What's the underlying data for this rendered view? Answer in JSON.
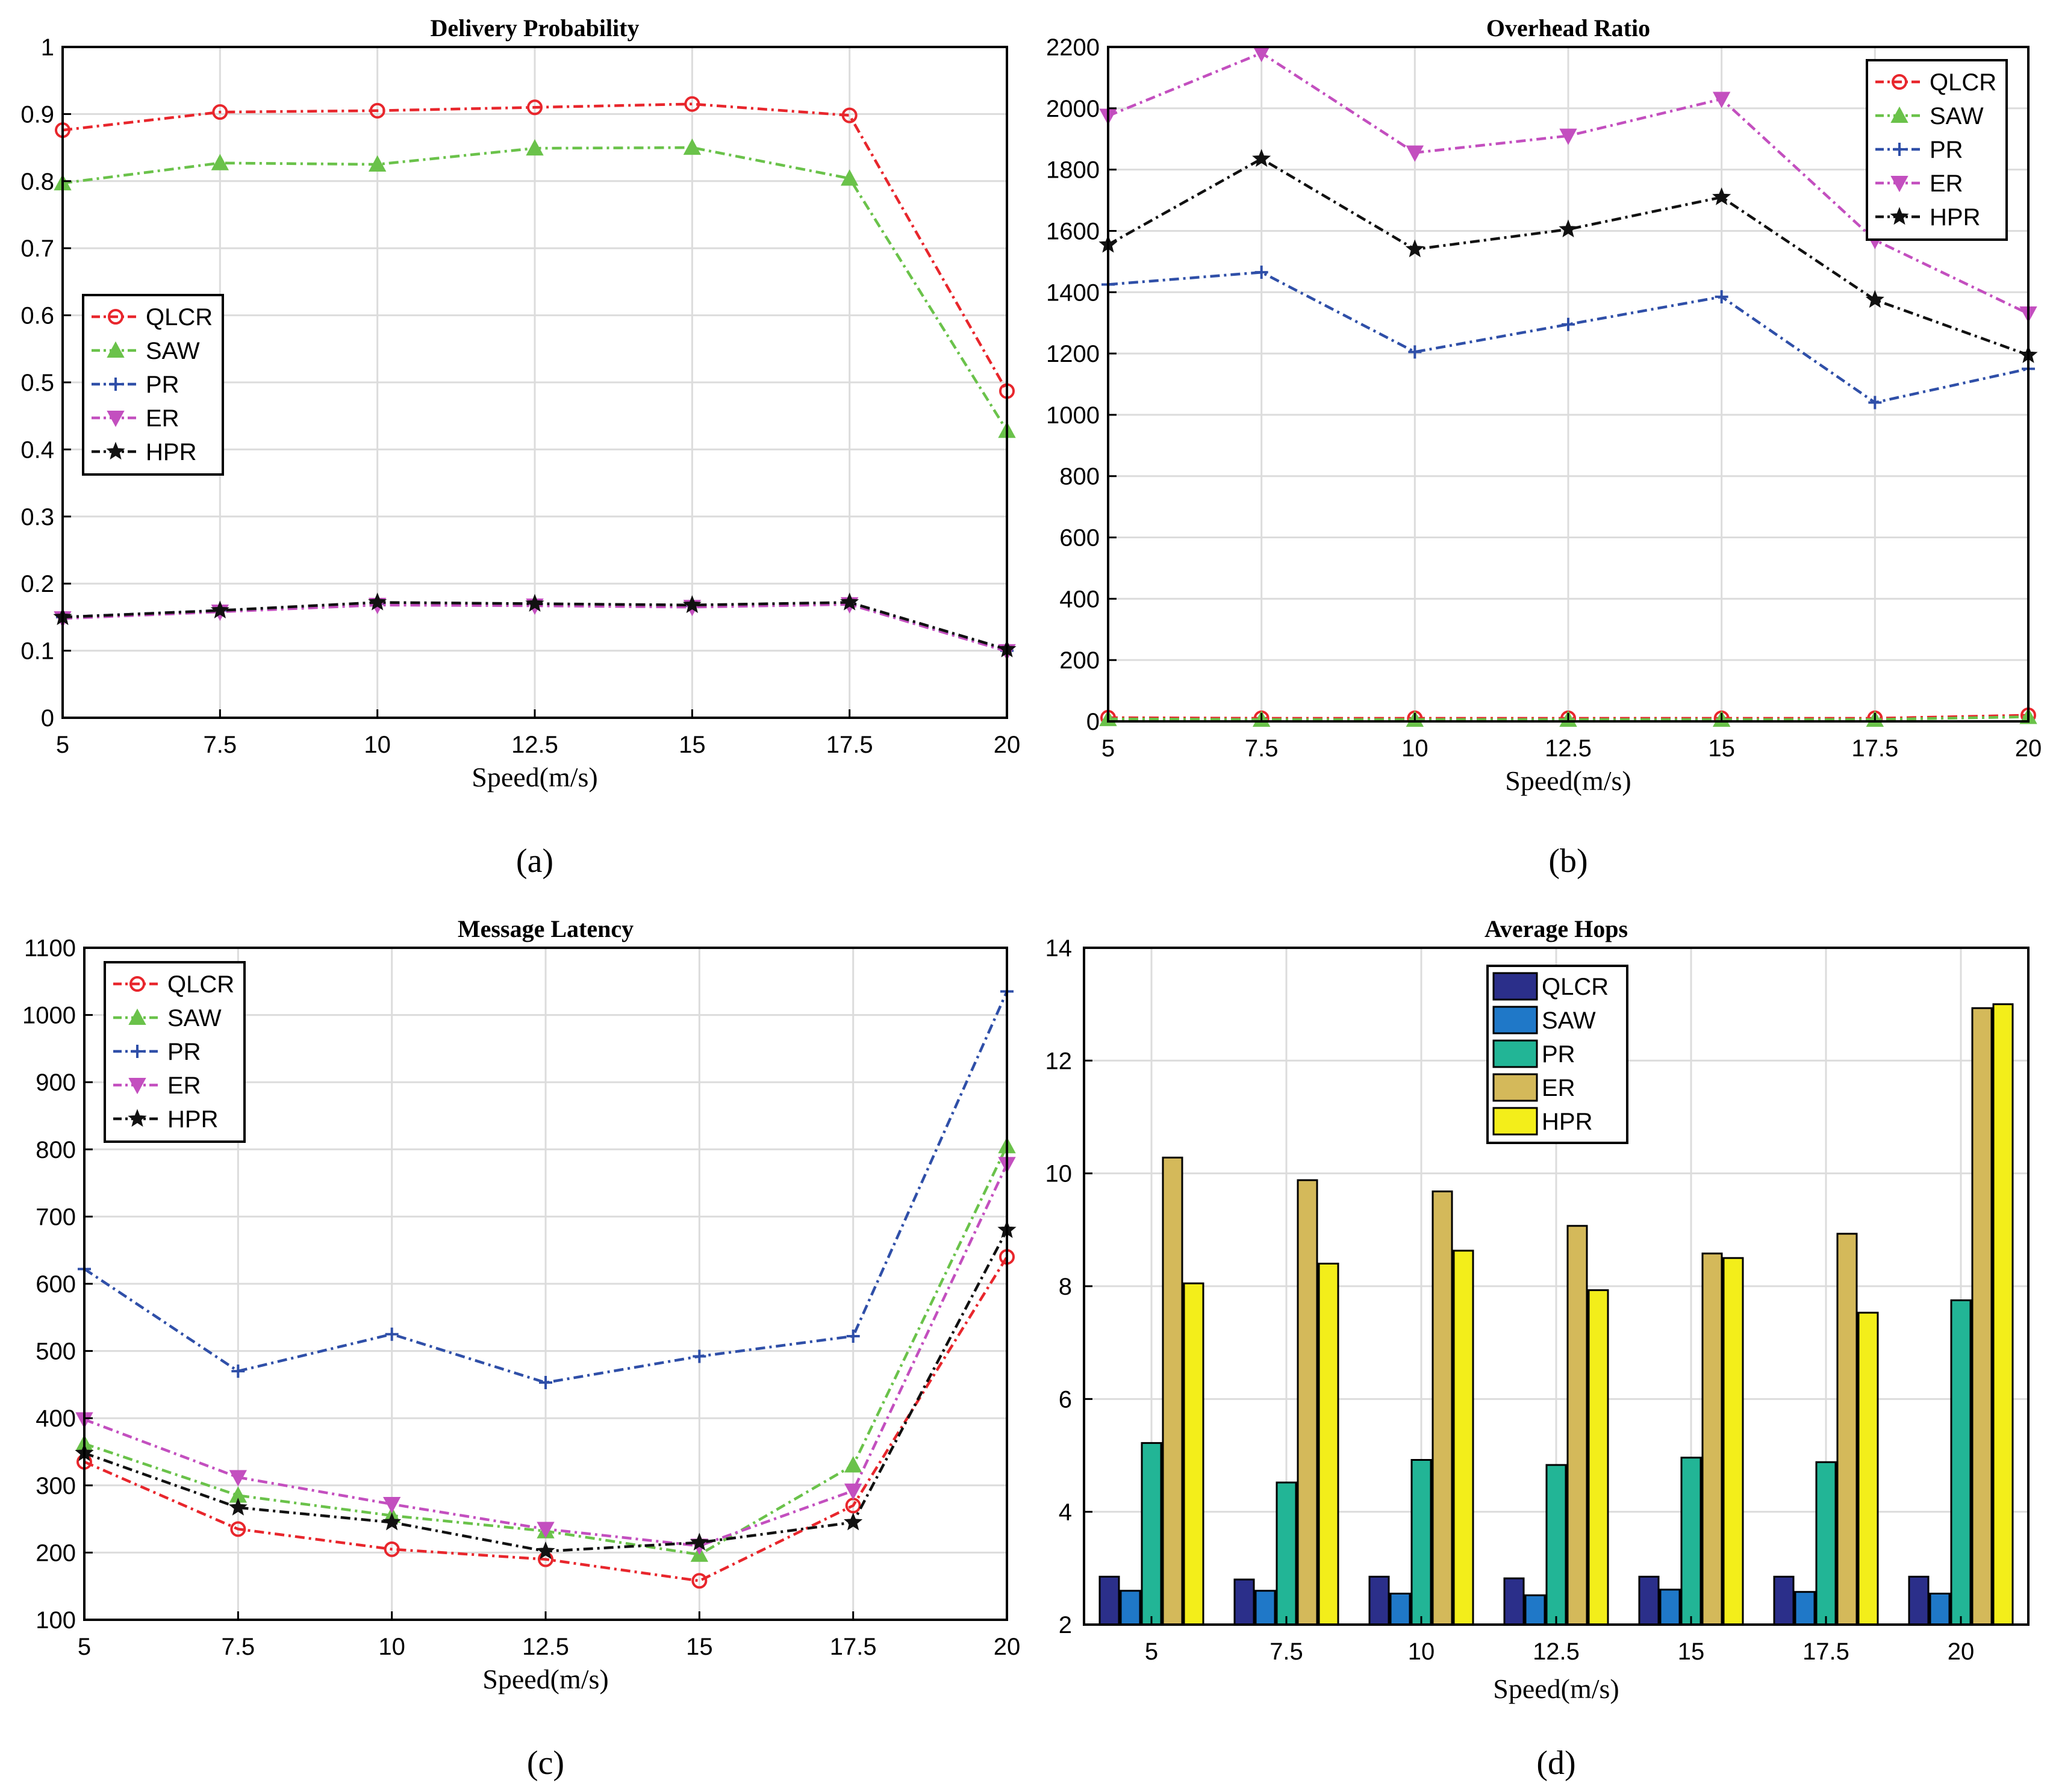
{
  "colors": {
    "QLCR": "#e8262c",
    "SAW": "#6ac24a",
    "PR": "#2f4fa8",
    "ER": "#c34fbf",
    "HPR": "#111111",
    "bar_QLCR": "#2b2f8a",
    "bar_SAW": "#1f78c8",
    "bar_PR": "#22b596",
    "bar_ER": "#d4b95a",
    "bar_HPR": "#f3ee1a",
    "grid": "#dcdcdc"
  },
  "chart_data": [
    {
      "type": "line",
      "title": "Delivery Probability",
      "xlabel": "Speed(m/s)",
      "ylabel": "",
      "caption": "(a)",
      "x": [
        5,
        7.5,
        10,
        12.5,
        15,
        17.5,
        20
      ],
      "x_ticks": [
        "5",
        "7.5",
        "10",
        "12.5",
        "15",
        "17.5",
        "20"
      ],
      "xlim": [
        5,
        20
      ],
      "ylim": [
        0,
        1
      ],
      "y_ticks": [
        "0",
        "0.1",
        "0.2",
        "0.3",
        "0.4",
        "0.5",
        "0.6",
        "0.7",
        "0.8",
        "0.9",
        "1"
      ],
      "grid": true,
      "legend": "middle-left",
      "series": [
        {
          "name": "QLCR",
          "marker": "circle",
          "values": [
            0.876,
            0.903,
            0.905,
            0.91,
            0.915,
            0.898,
            0.487
          ]
        },
        {
          "name": "SAW",
          "marker": "triangle-up",
          "values": [
            0.797,
            0.827,
            0.825,
            0.849,
            0.85,
            0.804,
            0.428
          ]
        },
        {
          "name": "PR",
          "marker": "plus",
          "values": [
            0.15,
            0.16,
            0.17,
            0.17,
            0.167,
            0.17,
            0.1
          ]
        },
        {
          "name": "ER",
          "marker": "triangle-down",
          "values": [
            0.148,
            0.158,
            0.168,
            0.167,
            0.165,
            0.169,
            0.099
          ]
        },
        {
          "name": "HPR",
          "marker": "star",
          "values": [
            0.15,
            0.16,
            0.172,
            0.17,
            0.168,
            0.172,
            0.102
          ]
        }
      ]
    },
    {
      "type": "line",
      "title": "Overhead Ratio",
      "xlabel": "Speed(m/s)",
      "ylabel": "",
      "caption": "(b)",
      "x": [
        5,
        7.5,
        10,
        12.5,
        15,
        17.5,
        20
      ],
      "x_ticks": [
        "5",
        "7.5",
        "10",
        "12.5",
        "15",
        "17.5",
        "20"
      ],
      "xlim": [
        5,
        20
      ],
      "ylim": [
        0,
        2200
      ],
      "y_ticks": [
        "0",
        "200",
        "400",
        "600",
        "800",
        "1000",
        "1200",
        "1400",
        "1600",
        "1800",
        "2000",
        "2200"
      ],
      "grid": true,
      "legend": "top-right",
      "series": [
        {
          "name": "QLCR",
          "marker": "circle",
          "values": [
            12,
            10,
            10,
            10,
            10,
            10,
            20
          ]
        },
        {
          "name": "SAW",
          "marker": "triangle-up",
          "values": [
            8,
            6,
            6,
            6,
            6,
            6,
            15
          ]
        },
        {
          "name": "PR",
          "marker": "plus",
          "values": [
            1425,
            1465,
            1205,
            1295,
            1385,
            1040,
            1150
          ]
        },
        {
          "name": "ER",
          "marker": "triangle-down",
          "values": [
            1975,
            2180,
            1855,
            1910,
            2030,
            1570,
            1330
          ]
        },
        {
          "name": "HPR",
          "marker": "star",
          "values": [
            1555,
            1835,
            1540,
            1605,
            1710,
            1375,
            1195
          ]
        }
      ]
    },
    {
      "type": "line",
      "title": "Message Latency",
      "xlabel": "Speed(m/s)",
      "ylabel": "",
      "caption": "(c)",
      "x": [
        5,
        7.5,
        10,
        12.5,
        15,
        17.5,
        20
      ],
      "x_ticks": [
        "5",
        "7.5",
        "10",
        "12.5",
        "15",
        "17.5",
        "20"
      ],
      "xlim": [
        5,
        20
      ],
      "ylim": [
        100,
        1100
      ],
      "y_ticks": [
        "100",
        "200",
        "300",
        "400",
        "500",
        "600",
        "700",
        "800",
        "900",
        "1000",
        "1100"
      ],
      "grid": true,
      "legend": "top-left",
      "series": [
        {
          "name": "QLCR",
          "marker": "circle",
          "values": [
            335,
            235,
            205,
            190,
            158,
            270,
            640
          ]
        },
        {
          "name": "SAW",
          "marker": "triangle-up",
          "values": [
            362,
            285,
            255,
            232,
            197,
            330,
            805
          ]
        },
        {
          "name": "PR",
          "marker": "plus",
          "values": [
            622,
            470,
            525,
            453,
            492,
            522,
            1035
          ]
        },
        {
          "name": "ER",
          "marker": "triangle-down",
          "values": [
            398,
            312,
            272,
            235,
            210,
            292,
            778
          ]
        },
        {
          "name": "HPR",
          "marker": "star",
          "values": [
            348,
            267,
            245,
            202,
            215,
            245,
            680
          ]
        }
      ]
    },
    {
      "type": "bar",
      "title": "Average Hops",
      "xlabel": "Speed(m/s)",
      "ylabel": "",
      "caption": "(d)",
      "categories": [
        "5",
        "7.5",
        "10",
        "12.5",
        "15",
        "17.5",
        "20"
      ],
      "ylim": [
        2,
        14
      ],
      "y_ticks": [
        "2",
        "4",
        "6",
        "8",
        "10",
        "12",
        "14"
      ],
      "grid": true,
      "legend": "top-center",
      "series": [
        {
          "name": "QLCR",
          "values": [
            2.85,
            2.8,
            2.85,
            2.82,
            2.85,
            2.85,
            2.85
          ]
        },
        {
          "name": "SAW",
          "values": [
            2.6,
            2.6,
            2.55,
            2.52,
            2.62,
            2.58,
            2.55
          ]
        },
        {
          "name": "PR",
          "values": [
            5.22,
            4.52,
            4.92,
            4.83,
            4.96,
            4.88,
            7.75
          ]
        },
        {
          "name": "ER",
          "values": [
            10.28,
            9.88,
            9.68,
            9.07,
            8.58,
            8.93,
            12.93
          ]
        },
        {
          "name": "HPR",
          "values": [
            8.05,
            8.4,
            8.63,
            7.93,
            8.5,
            7.53,
            13.0
          ]
        }
      ]
    }
  ]
}
